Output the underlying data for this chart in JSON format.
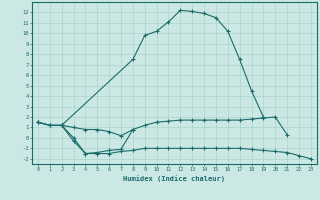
{
  "xlabel": "Humidex (Indice chaleur)",
  "bg_color": "#cce8e4",
  "grid_color": "#aad4ce",
  "line_color": "#1a6b6b",
  "curve_top_x": [
    0,
    1,
    2,
    8,
    9,
    10,
    11,
    12,
    13,
    14,
    15,
    16,
    17,
    18,
    19
  ],
  "curve_top_y": [
    1.5,
    1.2,
    1.2,
    7.5,
    9.8,
    10.2,
    11.1,
    12.2,
    12.1,
    11.9,
    11.5,
    10.2,
    7.5,
    4.5,
    2.0
  ],
  "curve_mid_x": [
    0,
    1,
    2,
    3,
    4,
    5,
    6,
    7,
    8,
    9,
    10,
    11,
    12,
    13,
    14,
    15,
    16,
    17,
    18,
    19,
    20,
    21
  ],
  "curve_mid_y": [
    1.5,
    1.2,
    1.2,
    1.0,
    0.8,
    0.8,
    0.6,
    0.2,
    0.8,
    1.2,
    1.5,
    1.6,
    1.7,
    1.7,
    1.7,
    1.7,
    1.7,
    1.7,
    1.8,
    1.9,
    2.0,
    0.3
  ],
  "curve_bot_x": [
    0,
    1,
    2,
    3,
    4,
    5,
    6,
    7,
    8,
    9,
    10,
    11,
    12,
    13,
    14,
    15,
    16,
    17,
    18,
    19,
    20,
    21,
    22,
    23
  ],
  "curve_bot_y": [
    1.5,
    1.2,
    1.2,
    -0.3,
    -1.5,
    -1.5,
    -1.5,
    -1.3,
    -1.2,
    -1.0,
    -1.0,
    -1.0,
    -1.0,
    -1.0,
    -1.0,
    -1.0,
    -1.0,
    -1.0,
    -1.1,
    -1.2,
    -1.3,
    -1.4,
    -1.7,
    -2.0
  ],
  "curve_dip_x": [
    2,
    3,
    4,
    5,
    6,
    7,
    8
  ],
  "curve_dip_y": [
    1.2,
    0.0,
    -1.5,
    -1.4,
    -1.2,
    -1.1,
    0.8
  ],
  "xlim": [
    -0.5,
    23.5
  ],
  "ylim": [
    -2.5,
    13
  ],
  "yticks": [
    -2,
    -1,
    0,
    1,
    2,
    3,
    4,
    5,
    6,
    7,
    8,
    9,
    10,
    11,
    12
  ],
  "xticks": [
    0,
    1,
    2,
    3,
    4,
    5,
    6,
    7,
    8,
    9,
    10,
    11,
    12,
    13,
    14,
    15,
    16,
    17,
    18,
    19,
    20,
    21,
    22,
    23
  ]
}
